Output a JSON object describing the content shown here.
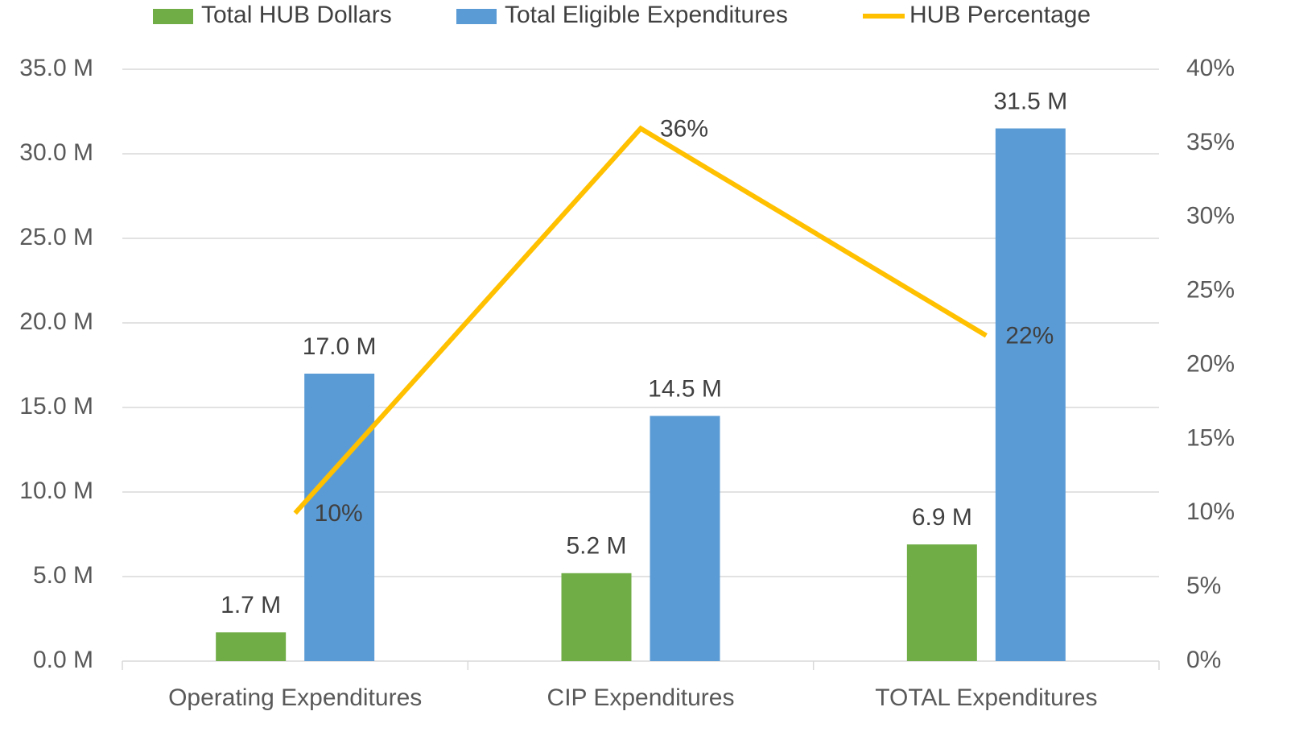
{
  "chart_data": {
    "type": "bar",
    "categories": [
      "Operating Expenditures",
      "CIP Expenditures",
      "TOTAL Expenditures"
    ],
    "series": [
      {
        "name": "Total HUB Dollars",
        "color": "#70ad47",
        "values": [
          1.7,
          5.2,
          6.9
        ],
        "value_labels": [
          "1.7 M",
          "5.2 M",
          "6.9 M"
        ]
      },
      {
        "name": "Total Eligible Expenditures",
        "color": "#5b9bd5",
        "values": [
          17.0,
          14.5,
          31.5
        ],
        "value_labels": [
          "17.0 M",
          "14.5 M",
          "31.5 M"
        ]
      },
      {
        "name": "HUB Percentage",
        "type": "line",
        "axis": "y2",
        "color": "#ffc000",
        "values": [
          10,
          36,
          22
        ],
        "value_labels": [
          "10%",
          "36%",
          "22%"
        ]
      }
    ],
    "ylim": [
      0,
      35
    ],
    "yticks": [
      {
        "value": 0,
        "label": "0.0 M"
      },
      {
        "value": 5,
        "label": "5.0 M"
      },
      {
        "value": 10,
        "label": "10.0 M"
      },
      {
        "value": 15,
        "label": "15.0 M"
      },
      {
        "value": 20,
        "label": "20.0 M"
      },
      {
        "value": 25,
        "label": "25.0 M"
      },
      {
        "value": 30,
        "label": "30.0 M"
      },
      {
        "value": 35,
        "label": "35.0 M"
      }
    ],
    "y2lim": [
      0,
      40
    ],
    "y2ticks": [
      {
        "value": 0,
        "label": "0%"
      },
      {
        "value": 5,
        "label": "5%"
      },
      {
        "value": 10,
        "label": "10%"
      },
      {
        "value": 15,
        "label": "15%"
      },
      {
        "value": 20,
        "label": "20%"
      },
      {
        "value": 25,
        "label": "25%"
      },
      {
        "value": 30,
        "label": "30%"
      },
      {
        "value": 35,
        "label": "35%"
      },
      {
        "value": 40,
        "label": "40%"
      }
    ],
    "grid": true,
    "legend": "top"
  }
}
